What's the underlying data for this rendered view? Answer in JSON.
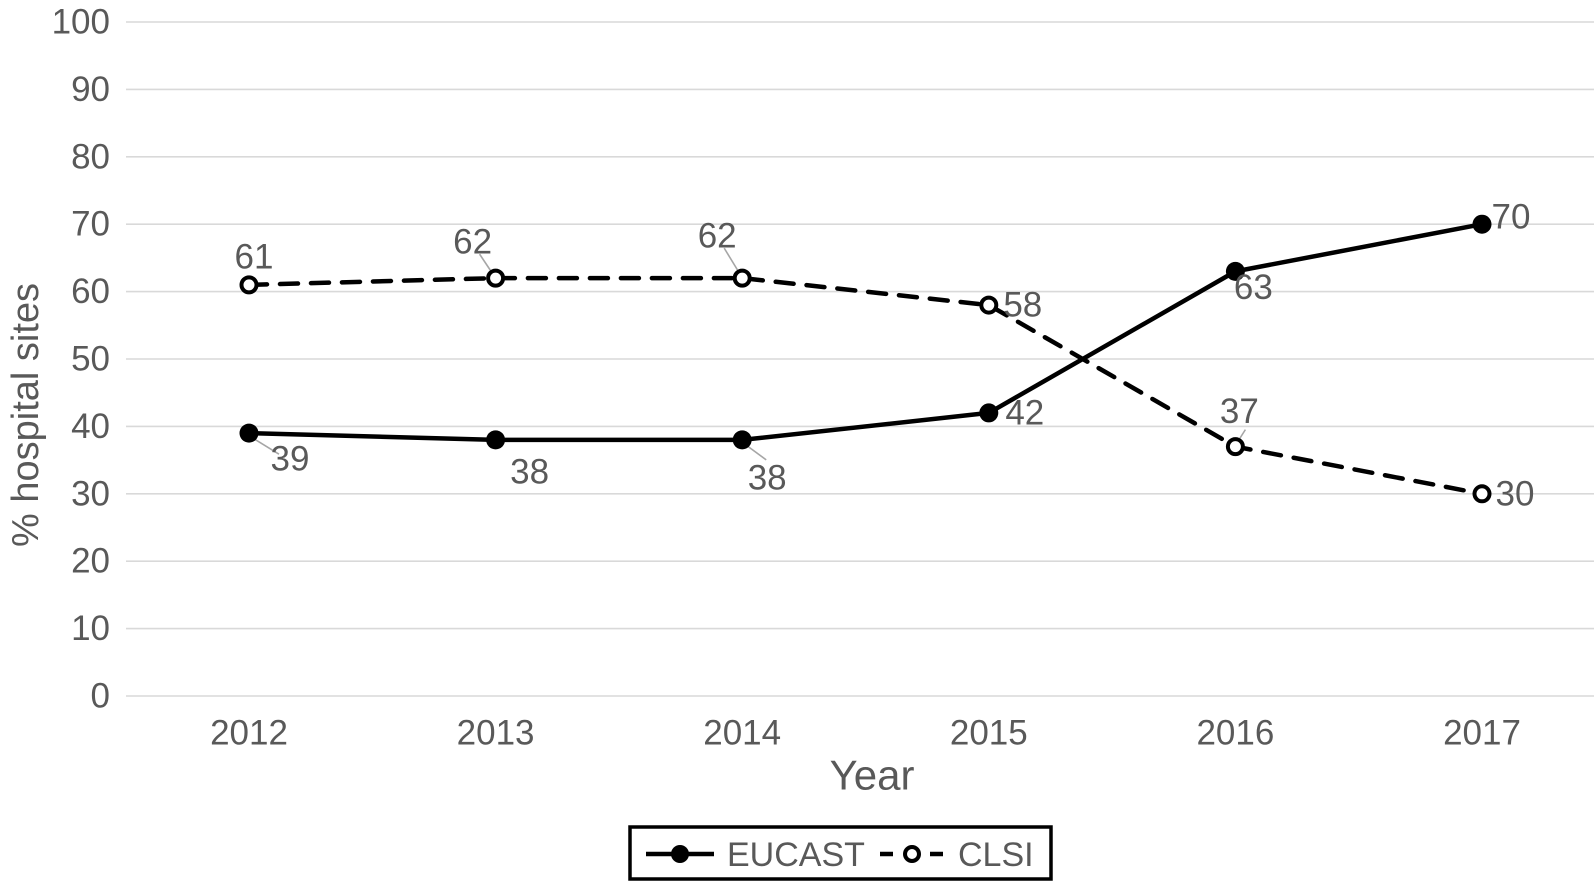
{
  "chart_data": {
    "type": "line",
    "title": "",
    "xlabel": "Year",
    "ylabel": "% hospital sites",
    "categories": [
      "2012",
      "2013",
      "2014",
      "2015",
      "2016",
      "2017"
    ],
    "yticks": [
      "0",
      "10",
      "20",
      "30",
      "40",
      "50",
      "60",
      "70",
      "80",
      "90",
      "100"
    ],
    "ylim": [
      0,
      100
    ],
    "ytick_interval": 10,
    "grid": "horizontal-only",
    "series": [
      {
        "name": "EUCAST",
        "line_style": "solid",
        "marker": "filled-circle",
        "values": [
          39,
          38,
          38,
          42,
          63,
          70
        ]
      },
      {
        "name": "CLSI",
        "line_style": "dashed",
        "marker": "open-circle",
        "values": [
          61,
          62,
          62,
          58,
          37,
          30
        ]
      }
    ],
    "legend": {
      "position": "bottom-center",
      "bordered": true,
      "entries": [
        "EUCAST",
        "CLSI"
      ]
    },
    "colors": {
      "series_line": "#000000",
      "marker_fill": "#000000",
      "open_marker_fill": "#ffffff",
      "text": "#595959",
      "gridline": "#d9d9d9",
      "leader_line": "#a6a6a6",
      "background": "#ffffff",
      "legend_border": "#000000"
    }
  }
}
